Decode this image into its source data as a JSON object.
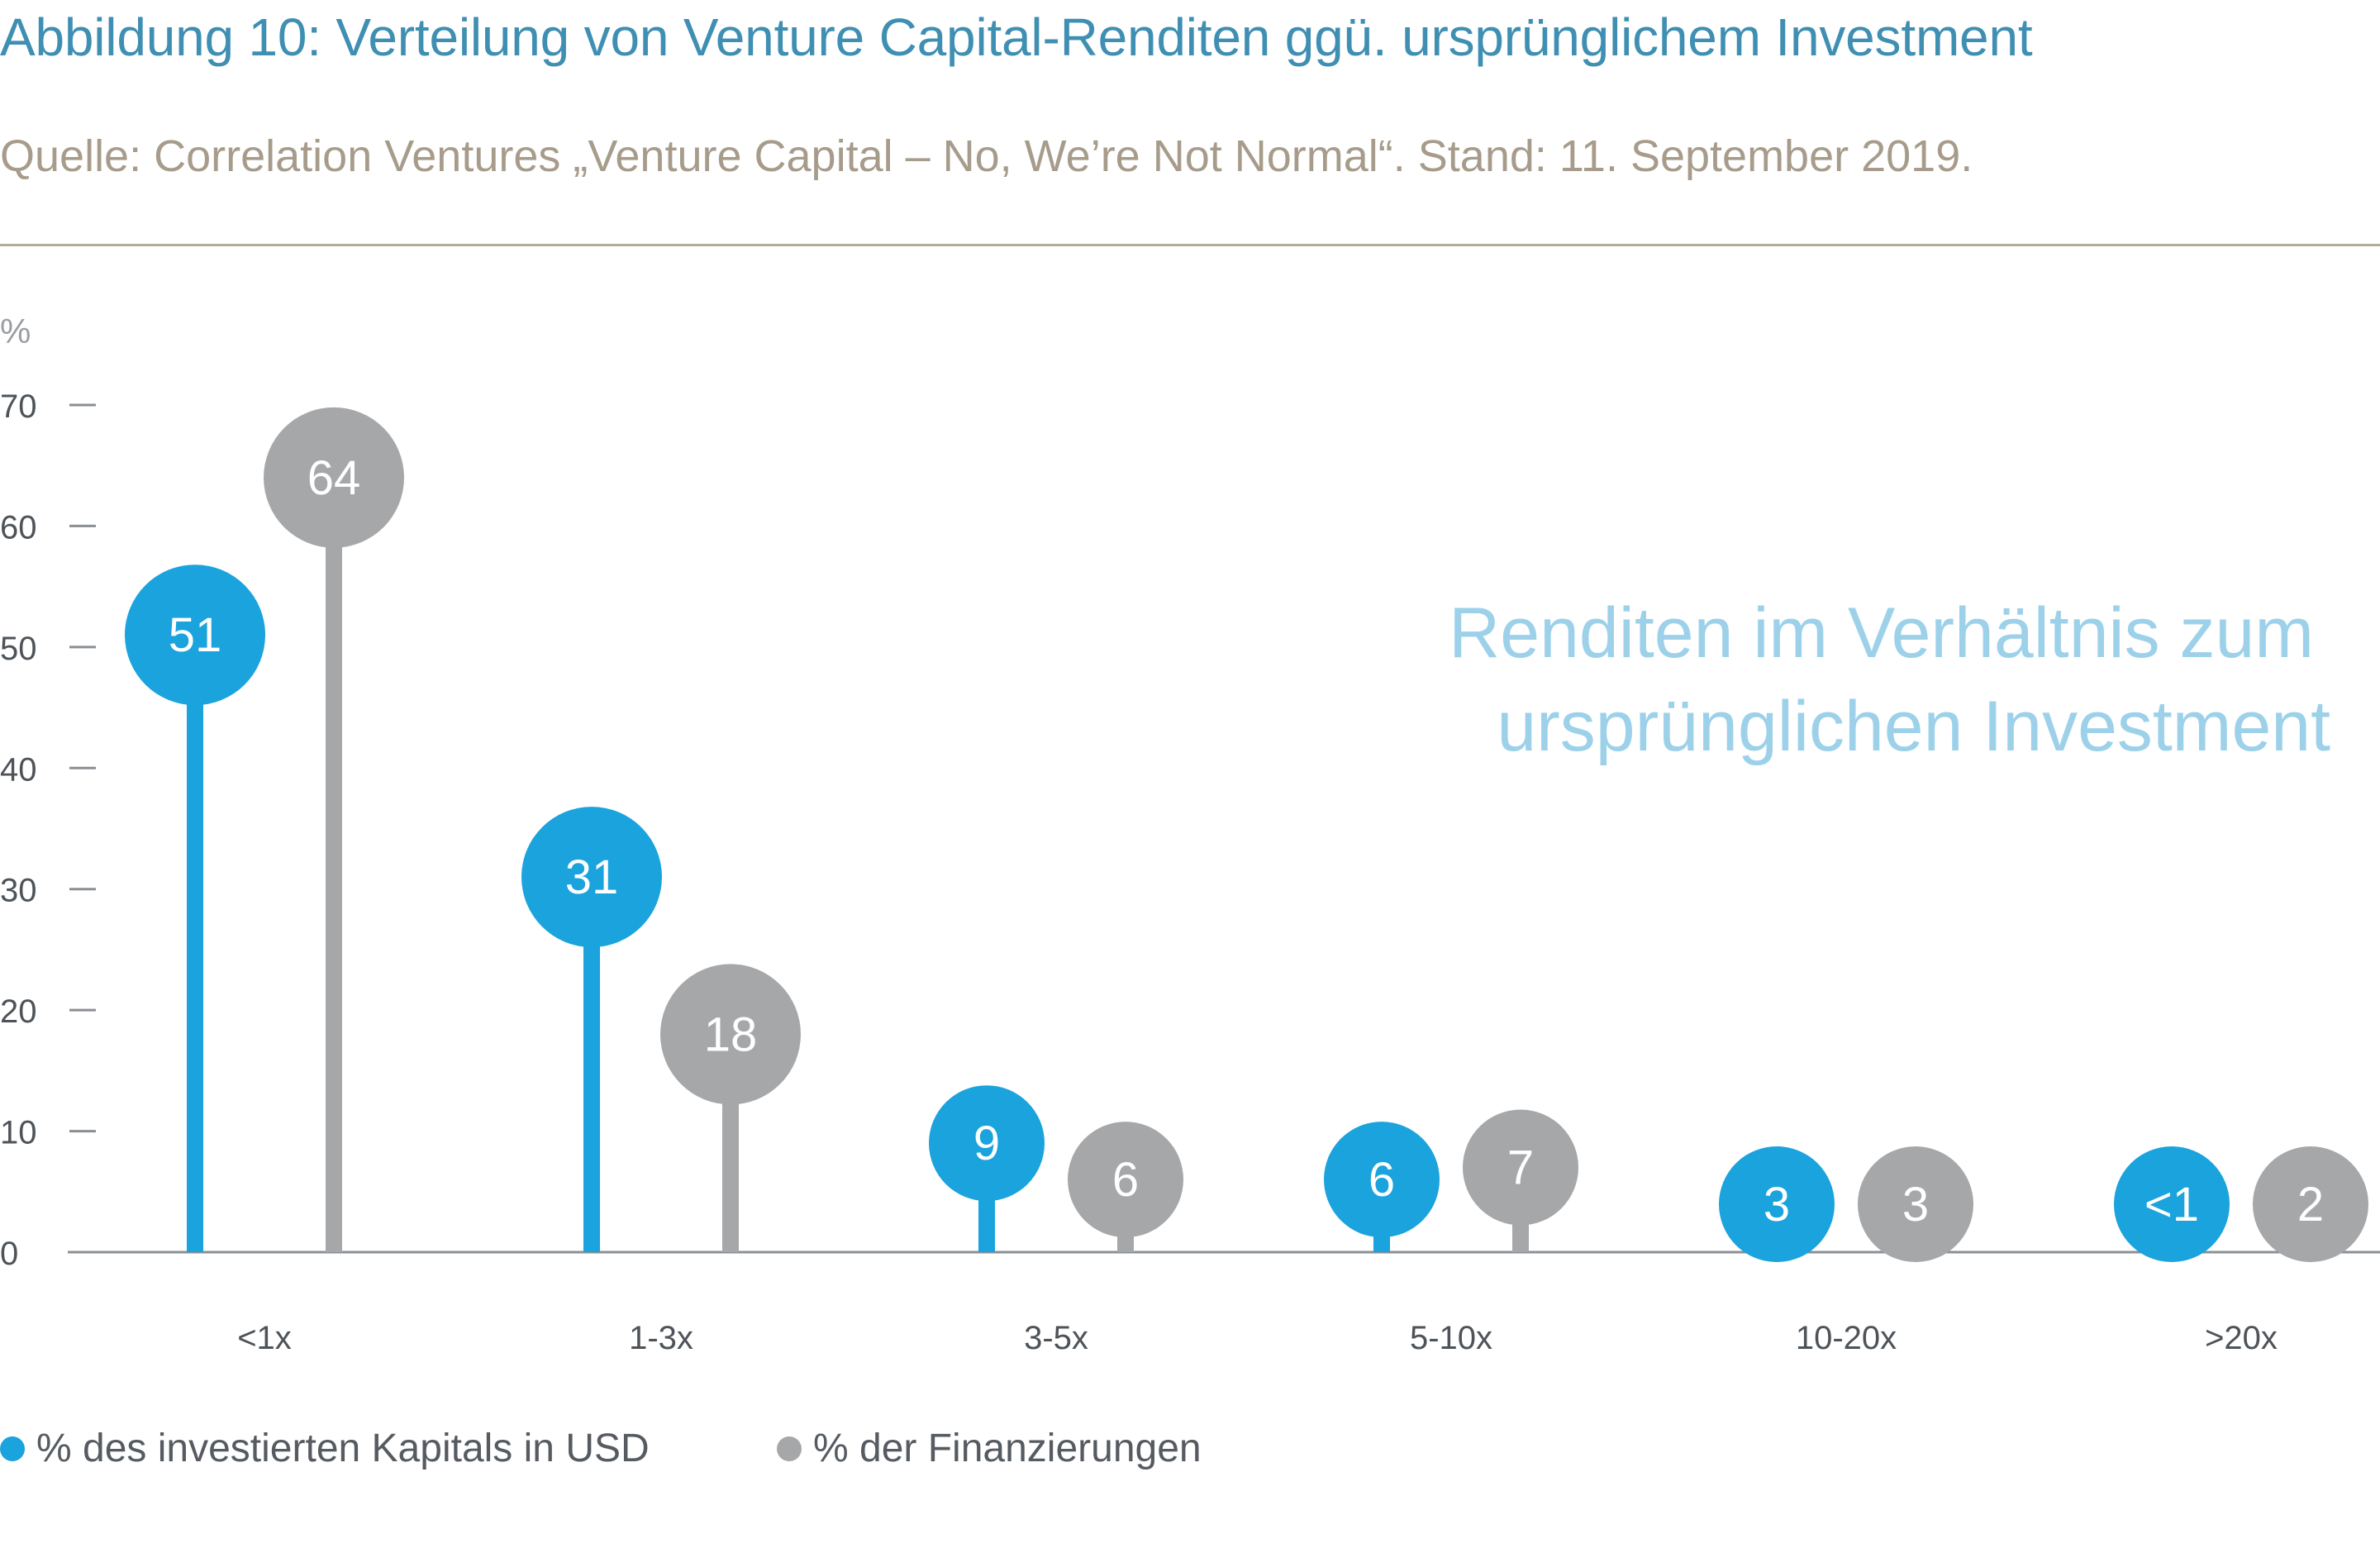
{
  "title": "Abbildung 10: Verteilung von Venture Capital-Renditen ggü. ursprünglichem Investment",
  "subtitle": "Quelle: Correlation Ventures „Venture Capital – No, We’re Not Normal“. Stand: 11. September 2019.",
  "colors": {
    "blue": "#1aa3dc",
    "gray": "#a6a7a9",
    "title": "#3f8fb3",
    "annotation": "#9dd1ea"
  },
  "chart_data": {
    "type": "lollipop",
    "y_unit": "%",
    "ylim": [
      0,
      70
    ],
    "yticks": [
      0,
      10,
      20,
      30,
      40,
      50,
      60,
      70
    ],
    "annotation": [
      "Renditen im Verhältnis zum",
      "ursprünglichen Investment"
    ],
    "categories": [
      "<1x",
      "1-3x",
      "3-5x",
      "5-10x",
      "10-20x",
      ">20x"
    ],
    "series": [
      {
        "name": "% des investierten Kapitals in USD",
        "color": "#1aa3dc",
        "values": [
          51,
          31,
          9,
          6,
          3,
          0.5
        ],
        "labels": [
          "51",
          "31",
          "9",
          "6",
          "3",
          "<1"
        ]
      },
      {
        "name": "% der Finanzierungen",
        "color": "#a6a7a9",
        "values": [
          64,
          18,
          6,
          7,
          3,
          2
        ],
        "labels": [
          "64",
          "18",
          "6",
          "7",
          "3",
          "2"
        ]
      }
    ]
  }
}
